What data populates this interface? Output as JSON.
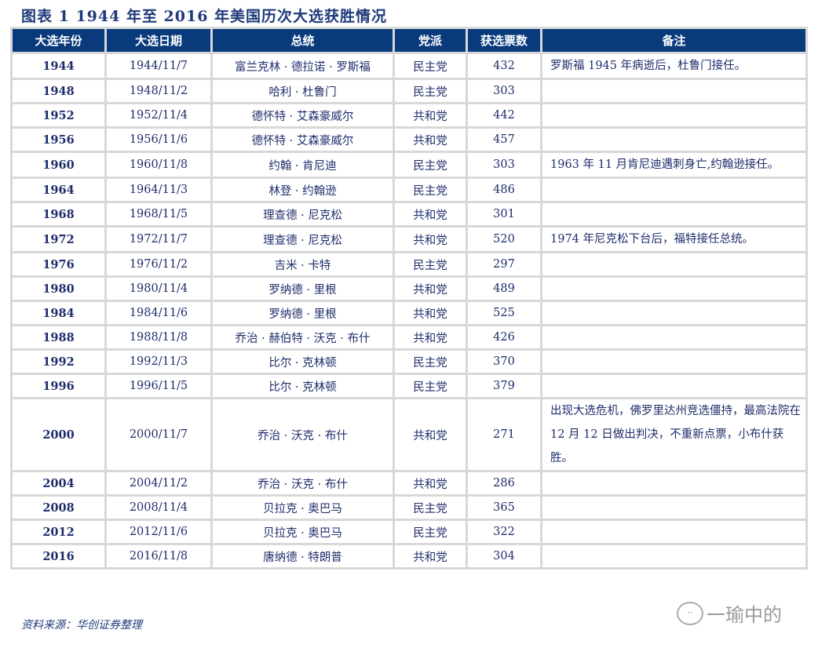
{
  "title": "图表 1   1944 年至 2016 年美国历次大选获胜情况",
  "headers": [
    "大选年份",
    "大选日期",
    "总统",
    "党派",
    "获选票数",
    "备注"
  ],
  "rows": [
    {
      "year": "1944",
      "date": "1944/11/7",
      "president": "富兰克林 · 德拉诺 · 罗斯福",
      "party": "民主党",
      "votes": "432",
      "note": "罗斯福 1945 年病逝后，杜鲁门接任。"
    },
    {
      "year": "1948",
      "date": "1948/11/2",
      "president": "哈利 · 杜鲁门",
      "party": "民主党",
      "votes": "303",
      "note": ""
    },
    {
      "year": "1952",
      "date": "1952/11/4",
      "president": "德怀特 · 艾森豪威尔",
      "party": "共和党",
      "votes": "442",
      "note": ""
    },
    {
      "year": "1956",
      "date": "1956/11/6",
      "president": "德怀特 · 艾森豪威尔",
      "party": "共和党",
      "votes": "457",
      "note": ""
    },
    {
      "year": "1960",
      "date": "1960/11/8",
      "president": "约翰 · 肯尼迪",
      "party": "民主党",
      "votes": "303",
      "note": "1963 年 11 月肯尼迪遇刺身亡,约翰逊接任。"
    },
    {
      "year": "1964",
      "date": "1964/11/3",
      "president": "林登 · 约翰逊",
      "party": "民主党",
      "votes": "486",
      "note": ""
    },
    {
      "year": "1968",
      "date": "1968/11/5",
      "president": "理查德 · 尼克松",
      "party": "共和党",
      "votes": "301",
      "note": ""
    },
    {
      "year": "1972",
      "date": "1972/11/7",
      "president": "理查德 · 尼克松",
      "party": "共和党",
      "votes": "520",
      "note": "1974 年尼克松下台后，福特接任总统。"
    },
    {
      "year": "1976",
      "date": "1976/11/2",
      "president": "吉米 · 卡特",
      "party": "民主党",
      "votes": "297",
      "note": ""
    },
    {
      "year": "1980",
      "date": "1980/11/4",
      "president": "罗纳德 · 里根",
      "party": "共和党",
      "votes": "489",
      "note": ""
    },
    {
      "year": "1984",
      "date": "1984/11/6",
      "president": "罗纳德 · 里根",
      "party": "共和党",
      "votes": "525",
      "note": ""
    },
    {
      "year": "1988",
      "date": "1988/11/8",
      "president": "乔治 · 赫伯特 · 沃克 · 布什",
      "party": "共和党",
      "votes": "426",
      "note": ""
    },
    {
      "year": "1992",
      "date": "1992/11/3",
      "president": "比尔 · 克林顿",
      "party": "民主党",
      "votes": "370",
      "note": ""
    },
    {
      "year": "1996",
      "date": "1996/11/5",
      "president": "比尔 · 克林顿",
      "party": "民主党",
      "votes": "379",
      "note": ""
    },
    {
      "year": "2000",
      "date": "2000/11/7",
      "president": "乔治 · 沃克 · 布什",
      "party": "共和党",
      "votes": "271",
      "note": "出现大选危机，佛罗里达州竞选僵持，最高法院在 12 月 12 日做出判决，不重新点票，小布什获胜。"
    },
    {
      "year": "2004",
      "date": "2004/11/2",
      "president": "乔治 · 沃克 · 布什",
      "party": "共和党",
      "votes": "286",
      "note": ""
    },
    {
      "year": "2008",
      "date": "2008/11/4",
      "president": "贝拉克 · 奥巴马",
      "party": "民主党",
      "votes": "365",
      "note": ""
    },
    {
      "year": "2012",
      "date": "2012/11/6",
      "president": "贝拉克 · 奥巴马",
      "party": "民主党",
      "votes": "322",
      "note": ""
    },
    {
      "year": "2016",
      "date": "2016/11/8",
      "president": "唐纳德 · 特朗普",
      "party": "共和党",
      "votes": "304",
      "note": ""
    }
  ],
  "source": "资料来源：华创证券整理",
  "watermark": "一瑜中的",
  "colors": {
    "header_bg": "#083a7c",
    "text": "#1f2d6b",
    "grid": "#d8d8d8"
  }
}
